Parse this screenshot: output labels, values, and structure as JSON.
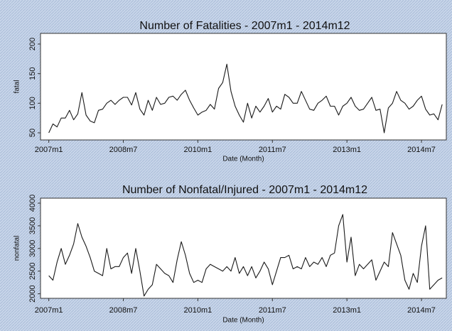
{
  "chart_data": [
    {
      "type": "line",
      "title": "Number of Fatalities - 2007m1 - 2014m12",
      "ylabel": "fatal",
      "xlabel": "Date (Month)",
      "color": "#1a1a1a",
      "x": [
        564,
        565,
        566,
        567,
        568,
        569,
        570,
        571,
        572,
        573,
        574,
        575,
        576,
        577,
        578,
        579,
        580,
        581,
        582,
        583,
        584,
        585,
        586,
        587,
        588,
        589,
        590,
        591,
        592,
        593,
        594,
        595,
        596,
        597,
        598,
        599,
        600,
        601,
        602,
        603,
        604,
        605,
        606,
        607,
        608,
        609,
        610,
        611,
        612,
        613,
        614,
        615,
        616,
        617,
        618,
        619,
        620,
        621,
        622,
        623,
        624,
        625,
        626,
        627,
        628,
        629,
        630,
        631,
        632,
        633,
        634,
        635,
        636,
        637,
        638,
        639,
        640,
        641,
        642,
        643,
        644,
        645,
        646,
        647,
        648,
        649,
        650,
        651,
        652,
        653,
        654,
        655,
        656,
        657,
        658,
        659
      ],
      "values": [
        50,
        65,
        60,
        75,
        75,
        88,
        72,
        82,
        118,
        80,
        70,
        67,
        88,
        90,
        100,
        105,
        98,
        105,
        110,
        110,
        97,
        118,
        90,
        80,
        105,
        88,
        110,
        98,
        100,
        110,
        112,
        105,
        115,
        122,
        105,
        92,
        80,
        85,
        88,
        98,
        90,
        125,
        135,
        166,
        120,
        95,
        80,
        68,
        100,
        75,
        95,
        85,
        95,
        108,
        85,
        95,
        90,
        115,
        110,
        100,
        100,
        120,
        105,
        90,
        88,
        100,
        105,
        112,
        95,
        95,
        80,
        95,
        100,
        110,
        95,
        88,
        90,
        100,
        110,
        88,
        90,
        50,
        92,
        100,
        120,
        105,
        100,
        90,
        95,
        105,
        112,
        90,
        80,
        82,
        72,
        98
      ],
      "xlim": [
        562,
        660
      ],
      "xticks": [
        {
          "value": 564,
          "label": "2007m1"
        },
        {
          "value": 582,
          "label": "2008m7"
        },
        {
          "value": 600,
          "label": "2010m1"
        },
        {
          "value": 618,
          "label": "2011m7"
        },
        {
          "value": 636,
          "label": "2013m1"
        },
        {
          "value": 654,
          "label": "2014m7"
        }
      ],
      "ylim": [
        38,
        218
      ],
      "yticks": [
        50,
        100,
        150,
        200
      ]
    },
    {
      "type": "line",
      "title": "Number of Nonfatal/Injured - 2007m1 - 2014m12",
      "ylabel": "nonfatal",
      "xlabel": "Date (Month)",
      "color": "#1a1a1a",
      "x": [
        564,
        565,
        566,
        567,
        568,
        569,
        570,
        571,
        572,
        573,
        574,
        575,
        576,
        577,
        578,
        579,
        580,
        581,
        582,
        583,
        584,
        585,
        586,
        587,
        588,
        589,
        590,
        591,
        592,
        593,
        594,
        595,
        596,
        597,
        598,
        599,
        600,
        601,
        602,
        603,
        604,
        605,
        606,
        607,
        608,
        609,
        610,
        611,
        612,
        613,
        614,
        615,
        616,
        617,
        618,
        619,
        620,
        621,
        622,
        623,
        624,
        625,
        626,
        627,
        628,
        629,
        630,
        631,
        632,
        633,
        634,
        635,
        636,
        637,
        638,
        639,
        640,
        641,
        642,
        643,
        644,
        645,
        646,
        647,
        648,
        649,
        650,
        651,
        652,
        653,
        654,
        655,
        656,
        657,
        658,
        659
      ],
      "values": [
        2400,
        2300,
        2700,
        3000,
        2650,
        2850,
        3100,
        3550,
        3250,
        3050,
        2800,
        2500,
        2450,
        2400,
        3000,
        2550,
        2600,
        2600,
        2800,
        2900,
        2450,
        3000,
        2500,
        1950,
        2100,
        2200,
        2650,
        2550,
        2450,
        2400,
        2250,
        2750,
        3150,
        2850,
        2450,
        2250,
        2300,
        2250,
        2550,
        2650,
        2600,
        2550,
        2500,
        2600,
        2500,
        2800,
        2450,
        2600,
        2400,
        2600,
        2350,
        2500,
        2700,
        2550,
        2200,
        2500,
        2800,
        2800,
        2850,
        2550,
        2600,
        2550,
        2800,
        2600,
        2700,
        2650,
        2800,
        2600,
        2850,
        2900,
        3500,
        3750,
        2700,
        3250,
        2400,
        2650,
        2550,
        2650,
        2750,
        2300,
        2500,
        2700,
        2600,
        3350,
        3100,
        2850,
        2300,
        2100,
        2450,
        2250,
        3050,
        3500,
        2100,
        2200,
        2300,
        2350
      ],
      "xlim": [
        562,
        660
      ],
      "xticks": [
        {
          "value": 564,
          "label": "2007m1"
        },
        {
          "value": 582,
          "label": "2008m7"
        },
        {
          "value": 600,
          "label": "2010m1"
        },
        {
          "value": 618,
          "label": "2011m7"
        },
        {
          "value": 636,
          "label": "2013m1"
        },
        {
          "value": 654,
          "label": "2014m7"
        }
      ],
      "ylim": [
        1900,
        4110
      ],
      "yticks": [
        2000,
        2500,
        3000,
        3500,
        4000
      ]
    }
  ]
}
